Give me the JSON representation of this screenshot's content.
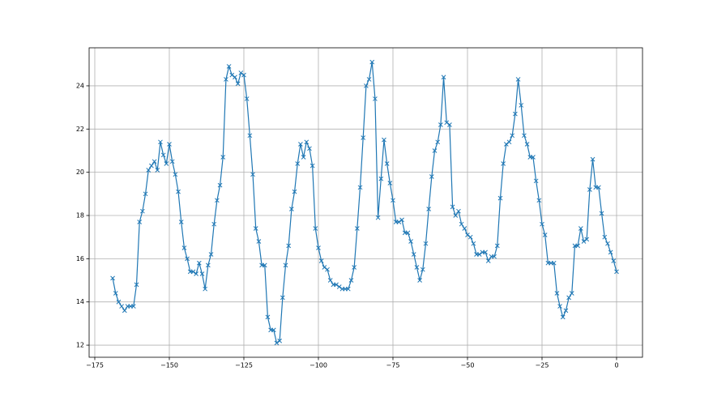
{
  "chart_data": {
    "type": "line",
    "color": "#1f77b4",
    "marker": "x",
    "grid": true,
    "x": [
      -169,
      -168,
      -167,
      -166,
      -165,
      -164,
      -163,
      -162,
      -161,
      -160,
      -159,
      -158,
      -157,
      -156,
      -155,
      -154,
      -153,
      -152,
      -151,
      -150,
      -149,
      -148,
      -147,
      -146,
      -145,
      -144,
      -143,
      -142,
      -141,
      -140,
      -139,
      -138,
      -137,
      -136,
      -135,
      -134,
      -133,
      -132,
      -131,
      -130,
      -129,
      -128,
      -127,
      -126,
      -125,
      -124,
      -123,
      -122,
      -121,
      -120,
      -119,
      -118,
      -117,
      -116,
      -115,
      -114,
      -113,
      -112,
      -111,
      -110,
      -109,
      -108,
      -107,
      -106,
      -105,
      -104,
      -103,
      -102,
      -101,
      -100,
      -99,
      -98,
      -97,
      -96,
      -95,
      -94,
      -93,
      -92,
      -91,
      -90,
      -89,
      -88,
      -87,
      -86,
      -85,
      -84,
      -83,
      -82,
      -81,
      -80,
      -79,
      -78,
      -77,
      -76,
      -75,
      -74,
      -73,
      -72,
      -71,
      -70,
      -69,
      -68,
      -67,
      -66,
      -65,
      -64,
      -63,
      -62,
      -61,
      -60,
      -59,
      -58,
      -57,
      -56,
      -55,
      -54,
      -53,
      -52,
      -51,
      -50,
      -49,
      -48,
      -47,
      -46,
      -45,
      -44,
      -43,
      -42,
      -41,
      -40,
      -39,
      -38,
      -37,
      -36,
      -35,
      -34,
      -33,
      -32,
      -31,
      -30,
      -29,
      -28,
      -27,
      -26,
      -25,
      -24,
      -23,
      -22,
      -21,
      -20,
      -19,
      -18,
      -17,
      -16,
      -15,
      -14,
      -13,
      -12,
      -11,
      -10,
      -9,
      -8,
      -7,
      -6,
      -5,
      -4,
      -3,
      -2,
      -1,
      0
    ],
    "values": [
      15.1,
      14.4,
      14.0,
      13.8,
      13.6,
      13.8,
      13.8,
      13.8,
      14.8,
      17.7,
      18.2,
      19.0,
      20.1,
      20.3,
      20.5,
      20.1,
      21.4,
      20.8,
      20.4,
      21.3,
      20.5,
      19.9,
      19.1,
      17.7,
      16.5,
      16.0,
      15.4,
      15.4,
      15.3,
      15.8,
      15.3,
      14.6,
      15.7,
      16.2,
      17.6,
      18.7,
      19.4,
      20.7,
      24.3,
      24.9,
      24.5,
      24.4,
      24.1,
      24.6,
      24.5,
      23.4,
      21.7,
      19.9,
      17.4,
      16.8,
      15.7,
      15.7,
      13.3,
      12.7,
      12.7,
      12.1,
      12.2,
      14.2,
      15.7,
      16.6,
      18.3,
      19.1,
      20.4,
      21.3,
      20.7,
      21.4,
      21.1,
      20.3,
      17.4,
      16.5,
      15.9,
      15.6,
      15.5,
      15.0,
      14.8,
      14.8,
      14.7,
      14.6,
      14.6,
      14.6,
      15.0,
      15.6,
      17.4,
      19.3,
      21.6,
      24.0,
      24.3,
      25.1,
      23.4,
      17.9,
      19.7,
      21.5,
      20.4,
      19.5,
      18.7,
      17.7,
      17.7,
      17.8,
      17.2,
      17.2,
      16.8,
      16.2,
      15.6,
      15.0,
      15.5,
      16.7,
      18.3,
      19.8,
      21.0,
      21.4,
      22.2,
      24.4,
      22.3,
      22.2,
      18.4,
      18.0,
      18.2,
      17.6,
      17.4,
      17.1,
      17.0,
      16.7,
      16.2,
      16.2,
      16.3,
      16.3,
      15.9,
      16.1,
      16.1,
      16.6,
      18.8,
      20.4,
      21.3,
      21.4,
      21.7,
      22.7,
      24.3,
      23.1,
      21.7,
      21.3,
      20.7,
      20.7,
      19.6,
      18.7,
      17.6,
      17.1,
      15.8,
      15.8,
      15.8,
      14.4,
      13.8,
      13.3,
      13.6,
      14.2,
      14.4,
      16.6,
      16.6,
      17.4,
      16.8,
      16.9,
      19.2,
      20.6,
      19.3,
      19.3,
      18.1,
      17.0,
      16.7,
      16.3,
      15.9,
      15.4
    ],
    "xlim": [
      -176.9,
      8.7
    ],
    "ylim": [
      11.44,
      25.76
    ],
    "xticks": [
      {
        "value": -175,
        "label": "−175"
      },
      {
        "value": -150,
        "label": "−150"
      },
      {
        "value": -125,
        "label": "−125"
      },
      {
        "value": -100,
        "label": "−100"
      },
      {
        "value": -75,
        "label": "−75"
      },
      {
        "value": -50,
        "label": "−50"
      },
      {
        "value": -25,
        "label": "−25"
      },
      0
    ],
    "yticks": [
      12,
      14,
      16,
      18,
      20,
      22,
      24
    ]
  }
}
